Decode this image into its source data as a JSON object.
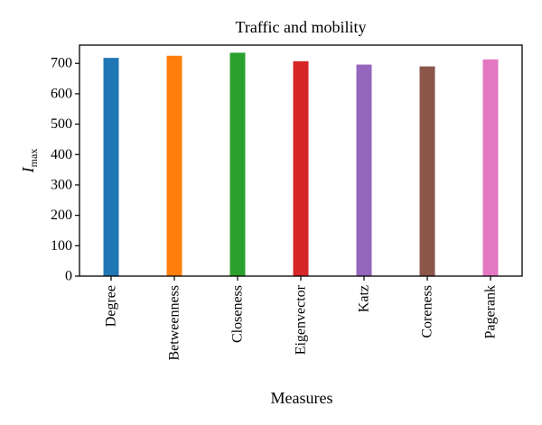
{
  "chart_data": {
    "type": "bar",
    "title": "Traffic and mobility",
    "xlabel": "Measures",
    "ylabel": {
      "main": "I",
      "sub": "max"
    },
    "categories": [
      "Degree",
      "Betweenness",
      "Closeness",
      "Eigenvector",
      "Katz",
      "Coreness",
      "Pagerank"
    ],
    "values": [
      718,
      725,
      735,
      707,
      696,
      690,
      713
    ],
    "colors": [
      "#1f77b4",
      "#ff7f0e",
      "#2ca02c",
      "#d62728",
      "#9467bd",
      "#8c564b",
      "#e377c2"
    ],
    "ylim": [
      0,
      760
    ],
    "yticks": [
      0,
      100,
      200,
      300,
      400,
      500,
      600,
      700
    ],
    "grid": false,
    "legend": "none"
  }
}
